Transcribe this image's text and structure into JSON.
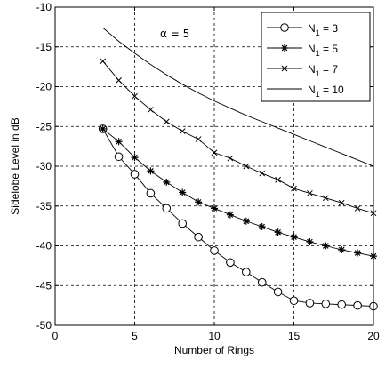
{
  "chart_data": {
    "type": "line",
    "xlabel": "Number of Rings",
    "ylabel": "Sidelobe Level in dB",
    "xlim": [
      0,
      20
    ],
    "ylim": [
      -50,
      -10
    ],
    "xticks": [
      0,
      5,
      10,
      15,
      20
    ],
    "yticks": [
      -50,
      -45,
      -40,
      -35,
      -30,
      -25,
      -20,
      -15,
      -10
    ],
    "xtick_labels": [
      "0",
      "5",
      "10",
      "15",
      "20"
    ],
    "ytick_labels": [
      "-50",
      "-45",
      "-40",
      "-35",
      "-30",
      "-25",
      "-20",
      "-15",
      "-10"
    ],
    "grid": true,
    "grid_style": "dashed",
    "legend_placement": "top-right",
    "annotation": "α = 5",
    "x": [
      3,
      4,
      5,
      6,
      7,
      8,
      9,
      10,
      11,
      12,
      13,
      14,
      15,
      16,
      17,
      18,
      19,
      20
    ],
    "series": [
      {
        "name": "N1 = 3",
        "legend_main": "N",
        "legend_sub": "1",
        "legend_rest": " = 3",
        "marker": "circle",
        "values": [
          -25.3,
          -28.8,
          -31.0,
          -33.4,
          -35.3,
          -37.2,
          -38.9,
          -40.6,
          -42.1,
          -43.3,
          -44.6,
          -45.8,
          -46.9,
          -47.2,
          -47.3,
          -47.4,
          -47.5,
          -47.6
        ]
      },
      {
        "name": "N1 = 5",
        "legend_main": "N",
        "legend_sub": "1",
        "legend_rest": " = 5",
        "marker": "star",
        "values": [
          -25.3,
          -26.9,
          -28.9,
          -30.6,
          -32.0,
          -33.3,
          -34.5,
          -35.3,
          -36.1,
          -36.9,
          -37.6,
          -38.3,
          -38.9,
          -39.5,
          -40.0,
          -40.5,
          -40.9,
          -41.3
        ]
      },
      {
        "name": "N1 = 7",
        "legend_main": "N",
        "legend_sub": "1",
        "legend_rest": " = 7",
        "marker": "x",
        "values": [
          -16.8,
          -19.2,
          -21.2,
          -22.9,
          -24.4,
          -25.6,
          -26.6,
          -28.3,
          -29.0,
          -30.0,
          -30.9,
          -31.7,
          -32.8,
          -33.4,
          -34.0,
          -34.6,
          -35.3,
          -35.9
        ]
      },
      {
        "name": "N1 = 10",
        "legend_main": "N",
        "legend_sub": "1",
        "legend_rest": " = 10",
        "marker": "none",
        "values": [
          -12.6,
          -14.3,
          -15.8,
          -17.2,
          -18.5,
          -19.7,
          -20.8,
          -21.8,
          -22.7,
          -23.6,
          -24.4,
          -25.2,
          -26.0,
          -26.8,
          -27.6,
          -28.4,
          -29.2,
          -30.0
        ]
      }
    ]
  }
}
